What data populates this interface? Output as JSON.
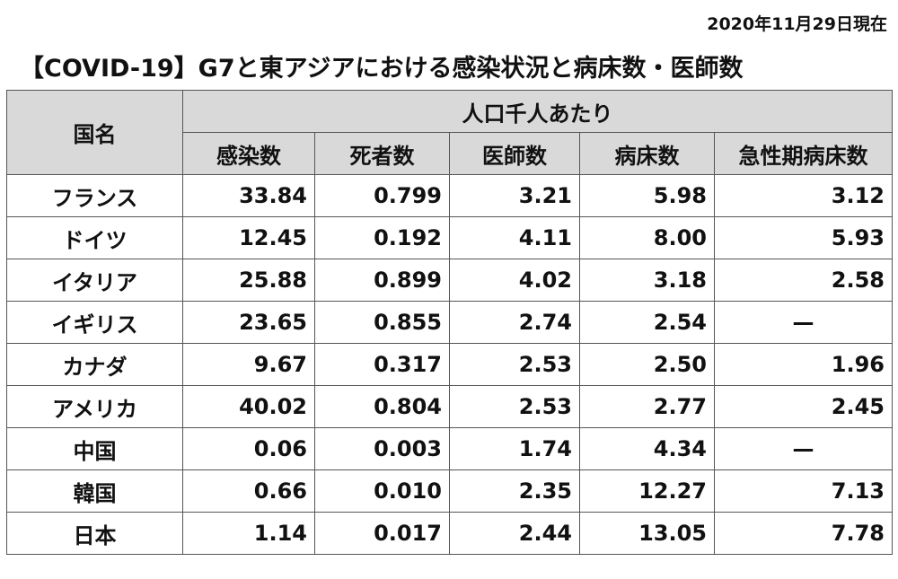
{
  "header": {
    "date": "2020年11月29日現在",
    "title": "【COVID-19】G7と東アジアにおける感染状況と病床数・医師数"
  },
  "table": {
    "country_header": "国名",
    "group_header": "人口千人あたり",
    "columns": [
      "感染数",
      "死者数",
      "医師数",
      "病床数",
      "急性期病床数"
    ],
    "rows": [
      [
        "フランス",
        "33.84",
        "0.799",
        "3.21",
        "5.98",
        "3.12"
      ],
      [
        "ドイツ",
        "12.45",
        "0.192",
        "4.11",
        "8.00",
        "5.93"
      ],
      [
        "イタリア",
        "25.88",
        "0.899",
        "4.02",
        "3.18",
        "2.58"
      ],
      [
        "イギリス",
        "23.65",
        "0.855",
        "2.74",
        "2.54",
        "—"
      ],
      [
        "カナダ",
        "9.67",
        "0.317",
        "2.53",
        "2.50",
        "1.96"
      ],
      [
        "アメリカ",
        "40.02",
        "0.804",
        "2.53",
        "2.77",
        "2.45"
      ],
      [
        "中国",
        "0.06",
        "0.003",
        "1.74",
        "4.34",
        "—"
      ],
      [
        "韓国",
        "0.66",
        "0.010",
        "2.35",
        "12.27",
        "7.13"
      ],
      [
        "日本",
        "1.14",
        "0.017",
        "2.44",
        "13.05",
        "7.78"
      ]
    ]
  }
}
